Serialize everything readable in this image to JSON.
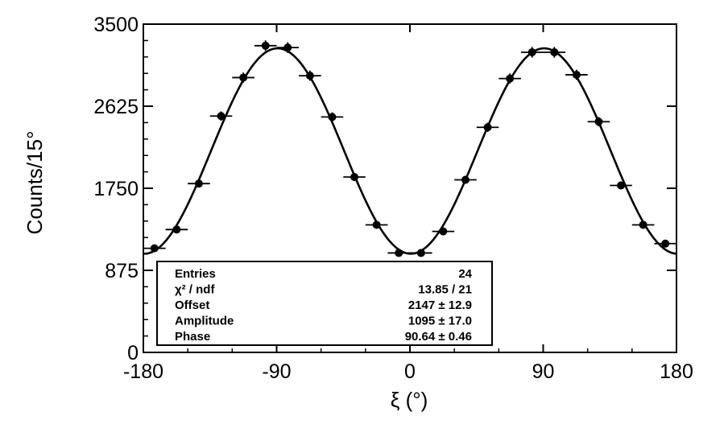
{
  "chart_data": {
    "type": "scatter",
    "xlabel": "ξ (°)",
    "ylabel": "Counts/15°",
    "xlim": [
      -180,
      180
    ],
    "ylim": [
      0,
      3500
    ],
    "xticks": [
      -180,
      -90,
      0,
      90,
      180
    ],
    "yticks": [
      0,
      875,
      1750,
      2625,
      3500
    ],
    "xtick_labels": [
      "-180",
      "-90",
      "0",
      "90",
      "180"
    ],
    "ytick_labels": [
      "0",
      "875",
      "1750",
      "2625",
      "3500"
    ],
    "series": [
      {
        "type": "scatter",
        "marker": "dot-with-errorbars",
        "x_bin_halfwidth": 7.5,
        "x": [
          -172.5,
          -157.5,
          -142.5,
          -127.5,
          -112.5,
          -97.5,
          -82.5,
          -67.5,
          -52.5,
          -37.5,
          -22.5,
          -7.5,
          7.5,
          22.5,
          37.5,
          52.5,
          67.5,
          82.5,
          97.5,
          112.5,
          127.5,
          142.5,
          157.5,
          172.5
        ],
        "y": [
          1110,
          1310,
          1800,
          2520,
          2930,
          3270,
          3250,
          2950,
          2510,
          1870,
          1360,
          1060,
          1060,
          1290,
          1840,
          2400,
          2920,
          3200,
          3200,
          2960,
          2460,
          1780,
          1360,
          1160
        ],
        "yerr": [
          33,
          36,
          42,
          50,
          54,
          57,
          57,
          54,
          50,
          43,
          37,
          33,
          33,
          36,
          43,
          49,
          54,
          57,
          57,
          54,
          50,
          42,
          37,
          34
        ]
      },
      {
        "type": "line",
        "fit": "Offset + Amplitude*cos(2*(ξ - Phase))"
      }
    ],
    "stats_box": {
      "placement": "bottom-left",
      "rows": [
        {
          "label": "Entries",
          "value": "24"
        },
        {
          "label": "χ² / ndf",
          "value": "13.85 / 21"
        },
        {
          "label": "Offset",
          "value": "2147 ± 12.9"
        },
        {
          "label": "Amplitude",
          "value": "1095 ± 17.0"
        },
        {
          "label": "Phase",
          "value": "90.64 ± 0.46"
        }
      ]
    },
    "fit_parameters": {
      "offset": 2147,
      "amplitude": 1095,
      "phase": 90.64
    }
  }
}
